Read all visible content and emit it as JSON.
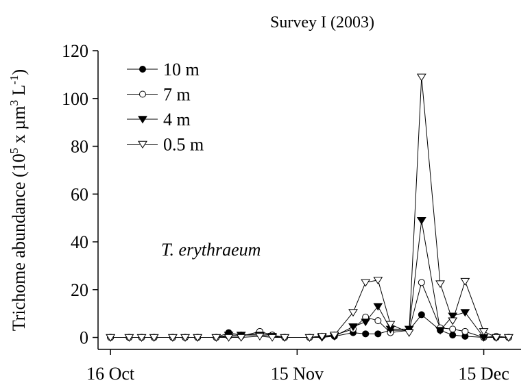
{
  "chart_data": {
    "type": "line",
    "title": "Survey I (2003)",
    "y_label": [
      "Trichome abundance (10",
      "5",
      " x µm",
      "3",
      " L",
      "-1",
      ")"
    ],
    "annotation": "T. erythraeum",
    "x": [
      0,
      3,
      5,
      7,
      10,
      12,
      14,
      17,
      19,
      21,
      24,
      26,
      28,
      32,
      34,
      36,
      39,
      41,
      43,
      45,
      48,
      50,
      53,
      55,
      57,
      60,
      62,
      64
    ],
    "xlim": [
      -2,
      66
    ],
    "xticks": [
      {
        "value": 0,
        "label": "16 Oct"
      },
      {
        "value": 30,
        "label": "15 Nov"
      },
      {
        "value": 60,
        "label": "15 Dec"
      }
    ],
    "ylim": [
      -5,
      120
    ],
    "yticks": [
      0,
      20,
      40,
      60,
      80,
      100,
      120
    ],
    "legend": "upper left",
    "series": [
      {
        "name": "10 m",
        "color": "#000000",
        "marker": "circle-filled",
        "values": [
          0,
          0,
          0,
          0,
          0,
          0,
          0,
          0,
          2,
          1,
          1.5,
          1,
          0,
          0,
          0.5,
          0.5,
          2,
          1.5,
          1.5,
          3,
          3,
          9.5,
          3,
          1,
          0.5,
          0,
          0,
          0
        ]
      },
      {
        "name": "7 m",
        "color": "#000000",
        "marker": "circle-open",
        "values": [
          0,
          0,
          0,
          0,
          0,
          0,
          0,
          0,
          0.5,
          0.5,
          2.5,
          1,
          0,
          0,
          0.5,
          1,
          3.5,
          8.5,
          7,
          2,
          3,
          23,
          4,
          3.5,
          2.5,
          0,
          0.5,
          0
        ]
      },
      {
        "name": "4 m",
        "color": "#000000",
        "marker": "triangle-filled",
        "values": [
          0,
          0,
          0,
          0,
          0,
          0,
          0,
          0,
          1,
          1,
          1,
          0.5,
          0,
          0,
          0,
          0.5,
          4.5,
          6.5,
          13,
          3.5,
          3.5,
          49,
          3,
          9,
          10.5,
          0,
          0,
          0
        ]
      },
      {
        "name": "0.5 m",
        "color": "#000000",
        "marker": "triangle-open",
        "values": [
          0,
          0,
          0,
          0,
          0,
          0,
          0,
          0,
          0,
          0,
          0.5,
          0,
          0,
          0,
          0.5,
          1,
          10.5,
          23,
          24,
          5.5,
          2,
          109,
          22.5,
          7,
          23.5,
          2.5,
          0,
          0
        ]
      }
    ]
  }
}
